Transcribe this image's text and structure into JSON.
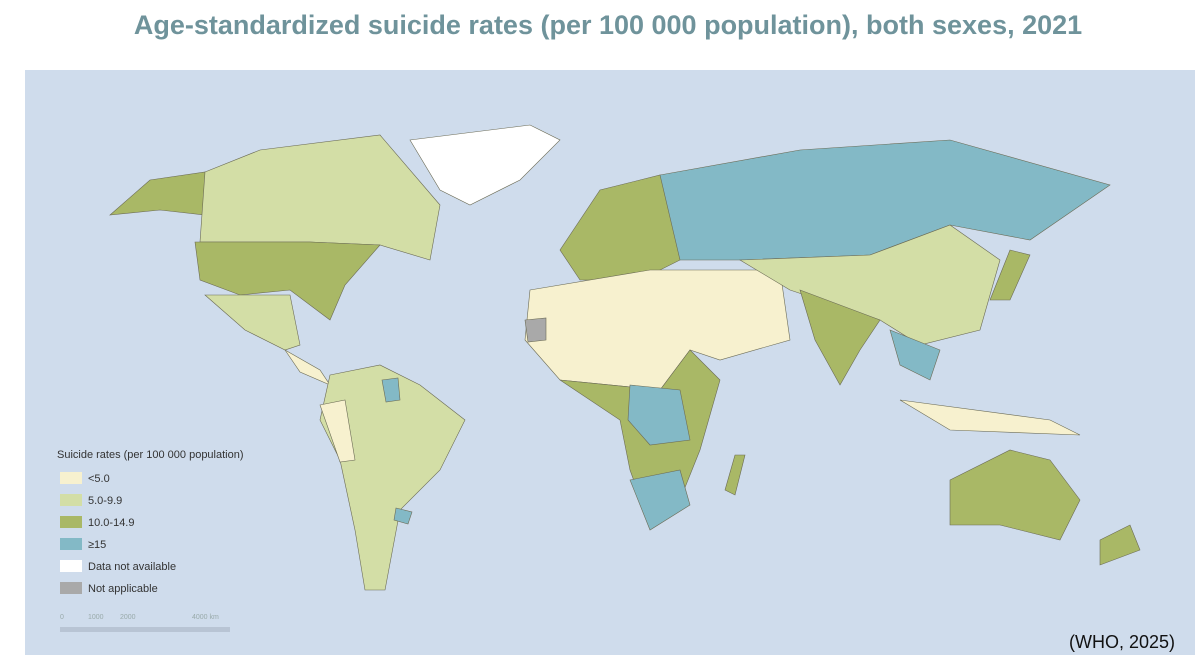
{
  "title": "Age-standardized suicide rates (per 100 000 population), both sexes, 2021",
  "legend": {
    "title": "Suicide rates (per 100 000 population)",
    "items": [
      {
        "label": "<5.0",
        "color": "#f7f1cf"
      },
      {
        "label": "5.0-9.9",
        "color": "#d3dea6"
      },
      {
        "label": "10.0-14.9",
        "color": "#a9b866"
      },
      {
        "label": "≥15",
        "color": "#83b9c6"
      },
      {
        "label": "Data not available",
        "color": "#ffffff"
      },
      {
        "label": "Not applicable",
        "color": "#a9a9a9"
      }
    ]
  },
  "scale_bar": {
    "labels": [
      "0",
      "1000",
      "2000",
      "4000 km"
    ]
  },
  "citation": "(WHO, 2025)"
}
